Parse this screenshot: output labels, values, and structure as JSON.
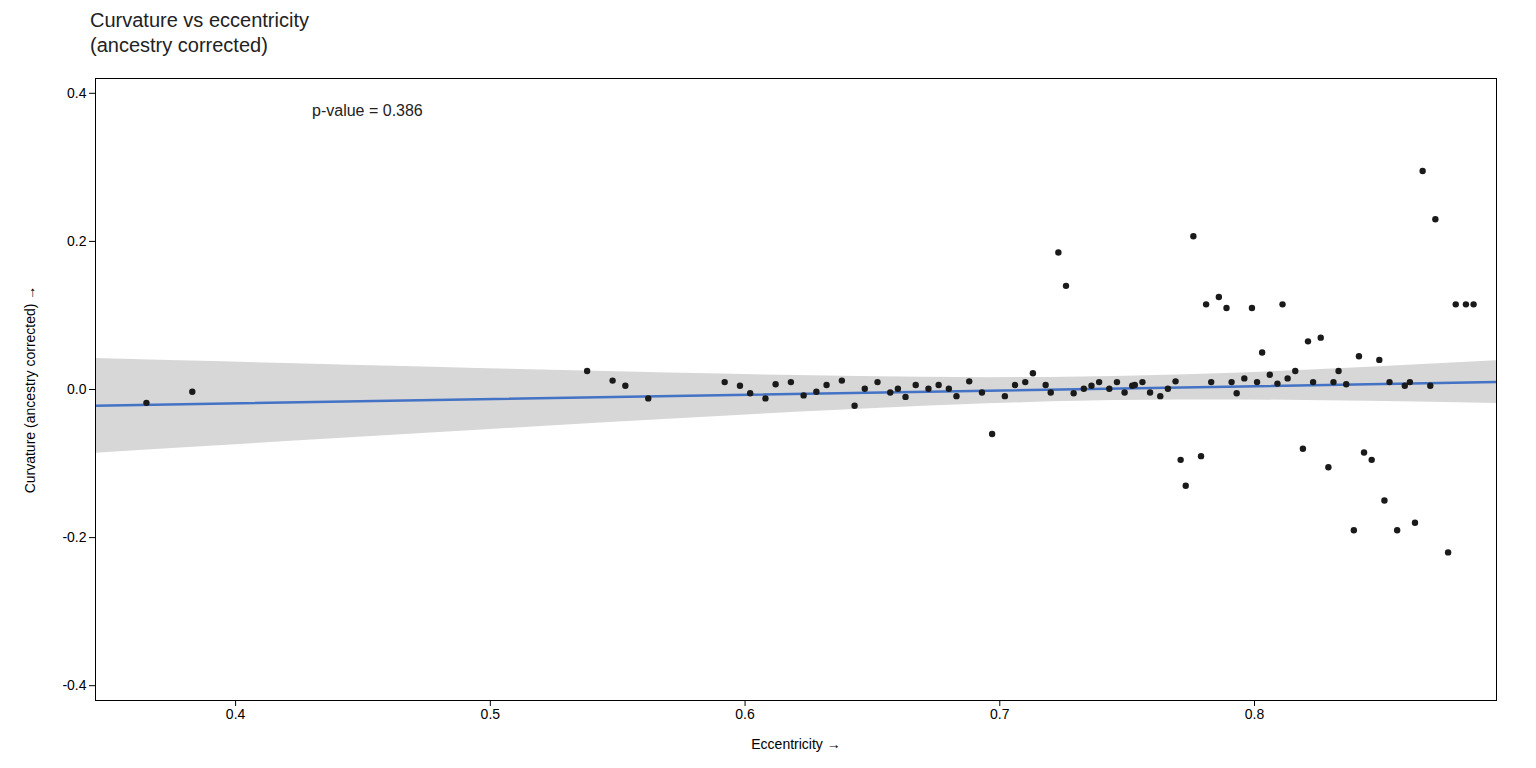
{
  "chart_data": {
    "type": "scatter",
    "title": "Curvature vs eccentricity\n(ancestry corrected)",
    "xlabel": "Eccentricity",
    "ylabel": "Curvature (ancestry corrected)",
    "xlim": [
      0.345,
      0.895
    ],
    "ylim": [
      -0.42,
      0.42
    ],
    "xticks": [
      0.4,
      0.5,
      0.6,
      0.7,
      0.8
    ],
    "yticks": [
      -0.4,
      -0.2,
      {
        "value": 0,
        "label": "0.0"
      },
      0.2,
      0.4
    ],
    "grid": false,
    "color": "#1a1a1a",
    "x": [
      0.365,
      0.383,
      0.538,
      0.548,
      0.553,
      0.562,
      0.592,
      0.598,
      0.602,
      0.608,
      0.612,
      0.618,
      0.623,
      0.628,
      0.632,
      0.638,
      0.643,
      0.647,
      0.652,
      0.657,
      0.66,
      0.663,
      0.667,
      0.672,
      0.676,
      0.68,
      0.683,
      0.688,
      0.693,
      0.697,
      0.702,
      0.706,
      0.71,
      0.713,
      0.718,
      0.72,
      0.723,
      0.726,
      0.729,
      0.733,
      0.736,
      0.739,
      0.743,
      0.746,
      0.749,
      0.752,
      0.753,
      0.756,
      0.759,
      0.763,
      0.766,
      0.769,
      0.771,
      0.773,
      0.776,
      0.779,
      0.781,
      0.783,
      0.786,
      0.789,
      0.791,
      0.793,
      0.796,
      0.799,
      0.801,
      0.803,
      0.806,
      0.809,
      0.811,
      0.813,
      0.816,
      0.819,
      0.821,
      0.823,
      0.826,
      0.829,
      0.831,
      0.833,
      0.836,
      0.839,
      0.841,
      0.843,
      0.846,
      0.849,
      0.851,
      0.853,
      0.856,
      0.859,
      0.861,
      0.863,
      0.866,
      0.869,
      0.871,
      0.876,
      0.879,
      0.883,
      0.886
    ],
    "values": [
      -0.018,
      -0.003,
      0.025,
      0.012,
      0.005,
      -0.012,
      0.01,
      0.005,
      -0.005,
      -0.012,
      0.007,
      0.01,
      -0.008,
      -0.003,
      0.006,
      0.012,
      -0.022,
      0.001,
      0.01,
      -0.004,
      0.001,
      -0.01,
      0.006,
      0.001,
      0.006,
      0.001,
      -0.009,
      0.011,
      -0.004,
      -0.06,
      -0.009,
      0.006,
      0.01,
      0.022,
      0.006,
      -0.004,
      0.185,
      0.14,
      -0.005,
      0.001,
      0.005,
      0.01,
      0.001,
      0.01,
      -0.004,
      0.005,
      0.006,
      0.01,
      -0.004,
      -0.009,
      0.001,
      0.011,
      -0.095,
      -0.13,
      0.207,
      -0.09,
      0.115,
      0.01,
      0.125,
      0.11,
      0.01,
      -0.005,
      0.015,
      0.11,
      0.01,
      0.05,
      0.02,
      0.008,
      0.115,
      0.015,
      0.025,
      -0.08,
      0.065,
      0.01,
      0.07,
      -0.105,
      0.01,
      0.025,
      0.007,
      -0.19,
      0.045,
      -0.085,
      -0.095,
      0.04,
      -0.15,
      0.01,
      -0.19,
      0.005,
      0.01,
      -0.18,
      0.295,
      0.005,
      0.23,
      -0.22,
      0.115,
      0.115,
      0.115
    ],
    "regression_line": {
      "x": [
        0.345,
        0.895
      ],
      "values": [
        -0.022,
        0.01
      ],
      "color": "#4472C4"
    },
    "confidence_band": {
      "color": "#b0b0b0",
      "x": [
        0.345,
        0.37,
        0.395,
        0.42,
        0.445,
        0.47,
        0.495,
        0.52,
        0.545,
        0.57,
        0.595,
        0.62,
        0.645,
        0.67,
        0.695,
        0.72,
        0.745,
        0.77,
        0.795,
        0.82,
        0.845,
        0.87,
        0.895
      ],
      "lower": [
        -0.085934,
        -0.080709,
        -0.075501,
        -0.070317,
        -0.065159,
        -0.060035,
        -0.054955,
        -0.04993,
        -0.044977,
        -0.040121,
        -0.035398,
        -0.030859,
        -0.026582,
        -0.02268,
        -0.019311,
        -0.01666,
        -0.014888,
        -0.014047,
        -0.014039,
        -0.014692,
        -0.01582,
        -0.017284,
        -0.01898
      ],
      "upper": [
        0.041934,
        0.039617,
        0.037319,
        0.035043,
        0.032795,
        0.030581,
        0.028409,
        0.026294,
        0.024249,
        0.022303,
        0.020488,
        0.018859,
        0.01749,
        0.016498,
        0.016037,
        0.016296,
        0.017434,
        0.019501,
        0.022403,
        0.025964,
        0.030002,
        0.034374,
        0.03898
      ]
    },
    "annotations": [
      {
        "text": "p-value = 0.386",
        "x": 0.43,
        "y": 0.385
      }
    ]
  }
}
